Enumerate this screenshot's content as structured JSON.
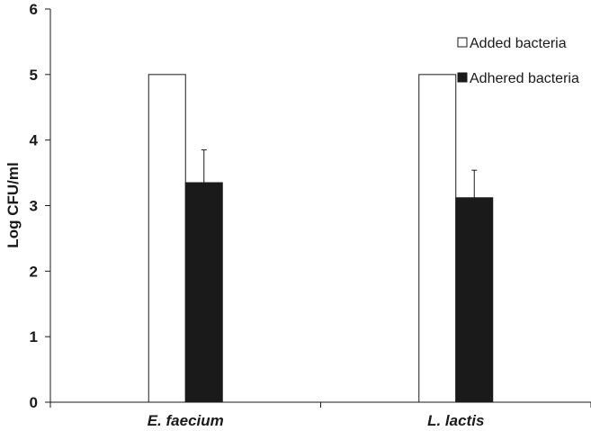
{
  "chart_data": {
    "type": "bar",
    "title": "",
    "xlabel": "",
    "ylabel": "Log CFU/ml",
    "categories": [
      "E. faecium",
      "L. lactis"
    ],
    "ylim": [
      0,
      6
    ],
    "yticks": [
      "0",
      "1",
      "2",
      "3",
      "4",
      "5",
      "6"
    ],
    "grid": false,
    "legend_position": "top-right",
    "series": [
      {
        "name": "Added bacteria",
        "values": [
          5,
          5
        ],
        "errors": [
          null,
          null
        ],
        "fill": "#ffffff",
        "stroke": "#1a1a1a"
      },
      {
        "name": "Adhered bacteria",
        "values": [
          3.35,
          3.12
        ],
        "errors": [
          0.5,
          0.42
        ],
        "fill": "#1a1a1a",
        "stroke": "#1a1a1a"
      }
    ]
  }
}
